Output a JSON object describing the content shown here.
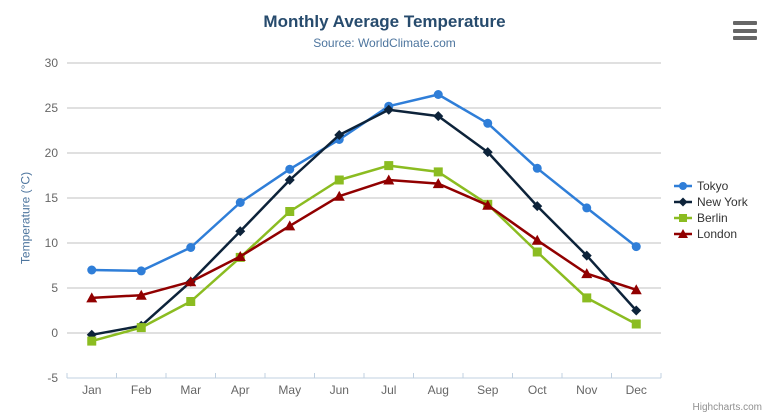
{
  "chart_data": {
    "type": "line",
    "title": "Monthly Average Temperature",
    "subtitle": "Source: WorldClimate.com",
    "xlabel": "",
    "ylabel": "Temperature (°C)",
    "ylim": [
      -5,
      30
    ],
    "ytick_step": 5,
    "grid": true,
    "legend_position": "right",
    "categories": [
      "Jan",
      "Feb",
      "Mar",
      "Apr",
      "May",
      "Jun",
      "Jul",
      "Aug",
      "Sep",
      "Oct",
      "Nov",
      "Dec"
    ],
    "series": [
      {
        "name": "Tokyo",
        "color": "#2f7ed8",
        "marker": "circle",
        "values": [
          7.0,
          6.9,
          9.5,
          14.5,
          18.2,
          21.5,
          25.2,
          26.5,
          23.3,
          18.3,
          13.9,
          9.6
        ]
      },
      {
        "name": "New York",
        "color": "#0d233a",
        "marker": "diamond",
        "values": [
          -0.2,
          0.8,
          5.7,
          11.3,
          17.0,
          22.0,
          24.8,
          24.1,
          20.1,
          14.1,
          8.6,
          2.5
        ]
      },
      {
        "name": "Berlin",
        "color": "#8bbc21",
        "marker": "square",
        "values": [
          -0.9,
          0.6,
          3.5,
          8.4,
          13.5,
          17.0,
          18.6,
          17.9,
          14.3,
          9.0,
          3.9,
          1.0
        ]
      },
      {
        "name": "London",
        "color": "#910000",
        "marker": "triangle",
        "values": [
          3.9,
          4.2,
          5.7,
          8.5,
          11.9,
          15.2,
          17.0,
          16.6,
          14.2,
          10.3,
          6.6,
          4.8
        ]
      }
    ]
  },
  "credits": "Highcharts.com",
  "colors": {
    "grid": "#C0C0C0",
    "axis_line": "#C0D0E0",
    "title": "#274b6d",
    "subtitle": "#4d759e",
    "axis_label": "#666666",
    "legend_text": "#333333",
    "credits": "#909090",
    "menu_icon": "#666666"
  }
}
